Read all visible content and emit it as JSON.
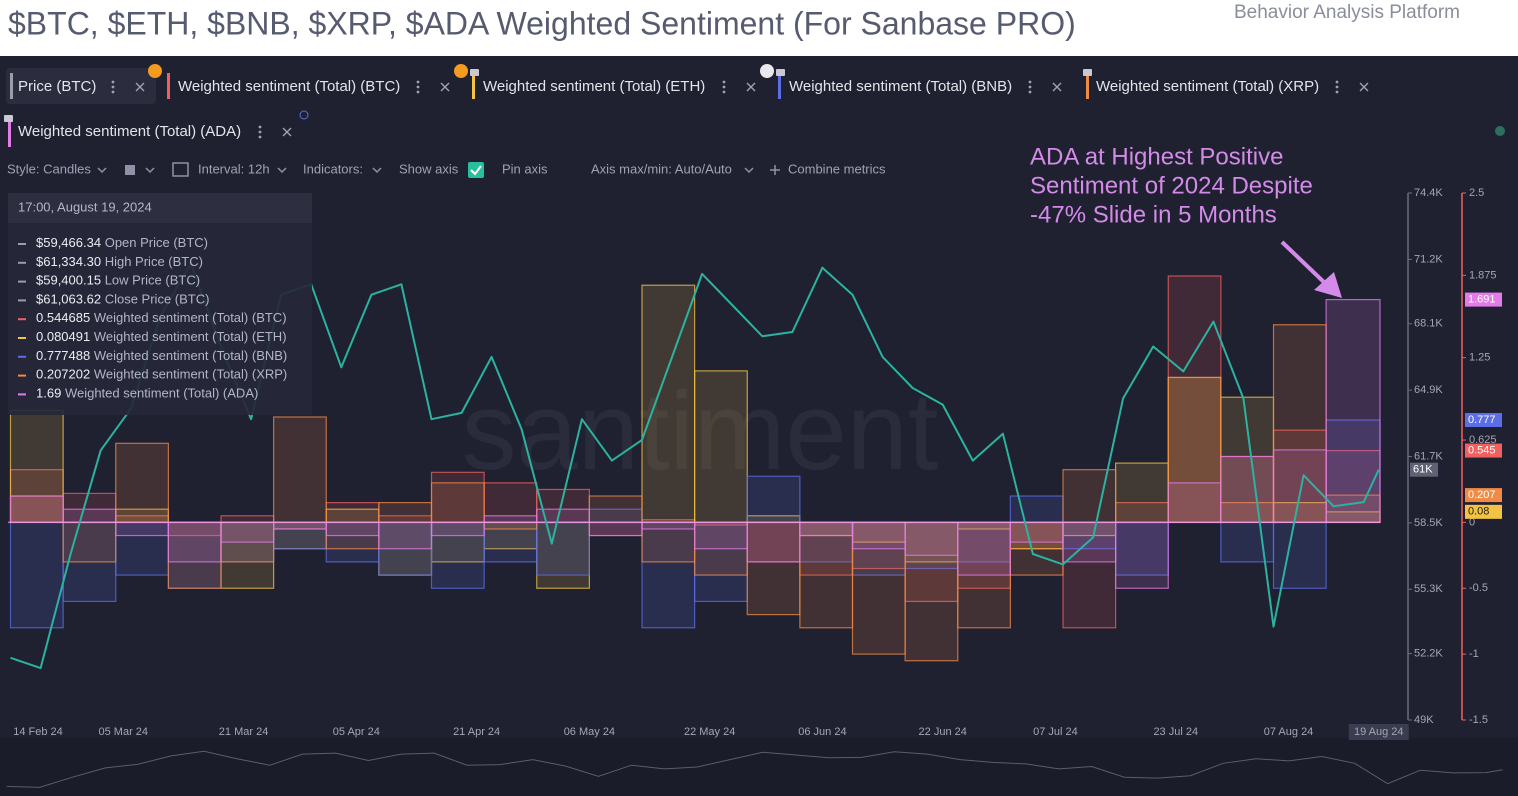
{
  "header": {
    "title": "$BTC, $ETH, $BNB, $XRP, $ADA Weighted Sentiment (For Sanbase PRO)",
    "brand": "Behavior Analysis Platform"
  },
  "toolbar": {
    "style": "Style: Candles",
    "interval": "Interval: 12h",
    "indicators": "Indicators:",
    "show_axis": "Show axis",
    "pin_axis": "Pin axis",
    "axis_range": "Axis max/min: Auto/Auto",
    "combine": "Combine metrics"
  },
  "tooltip": {
    "time": "17:00, August 19, 2024",
    "rows": [
      {
        "value": "$59,466.34",
        "label": "Open Price (BTC)",
        "color": "#9a9cab"
      },
      {
        "value": "$61,334.30",
        "label": "High Price (BTC)",
        "color": "#9a9cab"
      },
      {
        "value": "$59,400.15",
        "label": "Low Price (BTC)",
        "color": "#9a9cab"
      },
      {
        "value": "$61,063.62",
        "label": "Close Price (BTC)",
        "color": "#9a9cab"
      },
      {
        "value": "0.544685",
        "label": "Weighted sentiment (Total) (BTC)",
        "color": "#f0605e"
      },
      {
        "value": "0.080491",
        "label": "Weighted sentiment (Total) (ETH)",
        "color": "#f5c343"
      },
      {
        "value": "0.777488",
        "label": "Weighted sentiment (Total) (BNB)",
        "color": "#5b6ee8"
      },
      {
        "value": "0.207202",
        "label": "Weighted sentiment (Total) (XRP)",
        "color": "#f08a45"
      },
      {
        "value": "1.69",
        "label": "Weighted sentiment (Total) (ADA)",
        "color": "#e27ce8"
      }
    ]
  },
  "chart_data": {
    "type": "line",
    "watermark": "santiment",
    "annotation": [
      "ADA at Highest Positive",
      "Sentiment of 2024 Despite",
      "-47% Slide in 5 Months"
    ],
    "xlim": [
      "2024-02-18T16:00",
      "2024-08-19T04:00"
    ],
    "xticks": [
      {
        "value": "2024-02-14",
        "label": "14 Feb 24"
      },
      {
        "value": "2024-03-05",
        "label": "05 Mar 24"
      },
      {
        "value": "2024-03-21",
        "label": "21 Mar 24"
      },
      {
        "value": "2024-04-05",
        "label": "05 Apr 24"
      },
      {
        "value": "2024-04-21",
        "label": "21 Apr 24"
      },
      {
        "value": "2024-05-06",
        "label": "06 May 24"
      },
      {
        "value": "2024-05-22",
        "label": "22 May 24"
      },
      {
        "value": "2024-06-06",
        "label": "06 Jun 24"
      },
      {
        "value": "2024-06-22",
        "label": "22 Jun 24"
      },
      {
        "value": "2024-07-07",
        "label": "07 Jul 24"
      },
      {
        "value": "2024-07-23",
        "label": "23 Jul 24"
      },
      {
        "value": "2024-08-07",
        "label": "07 Aug 24"
      },
      {
        "value": "2024-08-19",
        "label": "19 Aug 24"
      }
    ],
    "ylim": [
      49000,
      74400
    ],
    "yticks": [
      {
        "value": 74400,
        "label": "74.4K"
      },
      {
        "value": 71200,
        "label": "71.2K"
      },
      {
        "value": 68100,
        "label": "68.1K"
      },
      {
        "value": 64900,
        "label": "64.9K"
      },
      {
        "value": 61700,
        "label": "61.7K"
      },
      {
        "value": 58500,
        "label": "58.5K"
      },
      {
        "value": 55300,
        "label": "55.3K"
      },
      {
        "value": 52200,
        "label": "52.2K"
      },
      {
        "value": 49000,
        "label": "49K"
      }
    ],
    "y2lim": [
      -1.5,
      2.5
    ],
    "y2ticks": [
      2.5,
      1.875,
      1.25,
      0.625,
      0,
      -0.5,
      -1,
      -1.5
    ],
    "price": {
      "name": "Price (BTC)",
      "color": "#2bb39f",
      "last_label": "61K",
      "x": [
        "2024-02-19",
        "2024-02-23",
        "2024-02-27",
        "2024-03-02",
        "2024-03-06",
        "2024-03-10",
        "2024-03-14",
        "2024-03-18",
        "2024-03-22",
        "2024-03-26",
        "2024-03-30",
        "2024-04-03",
        "2024-04-07",
        "2024-04-11",
        "2024-04-15",
        "2024-04-19",
        "2024-04-23",
        "2024-04-27",
        "2024-05-01",
        "2024-05-05",
        "2024-05-09",
        "2024-05-13",
        "2024-05-17",
        "2024-05-21",
        "2024-05-25",
        "2024-05-29",
        "2024-06-02",
        "2024-06-06",
        "2024-06-10",
        "2024-06-14",
        "2024-06-18",
        "2024-06-22",
        "2024-06-26",
        "2024-06-30",
        "2024-07-04",
        "2024-07-08",
        "2024-07-12",
        "2024-07-16",
        "2024-07-20",
        "2024-07-24",
        "2024-07-28",
        "2024-08-01",
        "2024-08-05",
        "2024-08-09",
        "2024-08-13",
        "2024-08-17",
        "2024-08-19"
      ],
      "values": [
        52000,
        51500,
        57000,
        62000,
        64000,
        68500,
        71000,
        67000,
        63500,
        69500,
        70000,
        66000,
        69500,
        70000,
        63500,
        63800,
        66500,
        63000,
        57500,
        63500,
        61500,
        62500,
        66500,
        70500,
        69000,
        67500,
        67700,
        70800,
        69500,
        66500,
        65000,
        64200,
        61500,
        62800,
        57000,
        56500,
        57800,
        64500,
        67000,
        65800,
        68200,
        64500,
        53500,
        60800,
        59300,
        59500,
        61063.62
      ]
    },
    "x": [
      "2024-02-19",
      "2024-02-26",
      "2024-03-04",
      "2024-03-11",
      "2024-03-18",
      "2024-03-25",
      "2024-04-01",
      "2024-04-08",
      "2024-04-15",
      "2024-04-22",
      "2024-04-29",
      "2024-05-06",
      "2024-05-13",
      "2024-05-20",
      "2024-05-27",
      "2024-06-03",
      "2024-06-10",
      "2024-06-17",
      "2024-06-24",
      "2024-07-01",
      "2024-07-08",
      "2024-07-15",
      "2024-07-22",
      "2024-07-29",
      "2024-08-05",
      "2024-08-12"
    ],
    "series": [
      {
        "name": "Weighted sentiment (Total) (BTC)",
        "color": "#f0605e",
        "axis": "y2",
        "values": [
          0.4,
          0.22,
          0.05,
          -0.1,
          0.05,
          -0.05,
          0.15,
          0.05,
          0.38,
          0.3,
          0.25,
          -0.1,
          0.02,
          -0.02,
          -0.3,
          -0.4,
          -0.35,
          -0.6,
          -0.5,
          -0.2,
          -0.8,
          0.15,
          1.87,
          0.5,
          0.7,
          0.545
        ]
      },
      {
        "name": "Weighted sentiment (Total) (ETH)",
        "color": "#f5c343",
        "axis": "y2",
        "values": [
          0.85,
          0,
          0.1,
          0,
          -0.5,
          -0.2,
          0.1,
          -0.4,
          -0.3,
          -0.2,
          -0.5,
          0,
          1.8,
          1.15,
          0.05,
          -0.1,
          -0.15,
          -0.3,
          -0.05,
          -0.2,
          -0.1,
          0.45,
          1.1,
          0.95,
          0.15,
          0.08
        ]
      },
      {
        "name": "Weighted sentiment (Total) (BNB)",
        "color": "#5b6ee8",
        "axis": "y2",
        "values": [
          -0.8,
          -0.6,
          -0.4,
          -0.5,
          -0.3,
          -0.2,
          -0.3,
          -0.4,
          -0.5,
          -0.3,
          -0.4,
          0.1,
          -0.8,
          -0.6,
          0.35,
          -0.3,
          -0.4,
          -0.35,
          -0.3,
          0.2,
          -0.2,
          -0.4,
          0,
          -0.3,
          -0.5,
          0.777
        ]
      },
      {
        "name": "Weighted sentiment (Total) (XRP)",
        "color": "#f08a45",
        "axis": "y2",
        "values": [
          0.2,
          -0.3,
          0.6,
          -0.5,
          -0.3,
          0.8,
          -0.2,
          0.15,
          0.3,
          -0.05,
          0,
          0.2,
          -0.3,
          -0.4,
          -0.7,
          -0.8,
          -1,
          -1.05,
          -0.8,
          -0.4,
          0.4,
          0,
          1.1,
          0.15,
          1.5,
          0.207
        ]
      },
      {
        "name": "Weighted sentiment (Total) (ADA)",
        "color": "#e27ce8",
        "axis": "y2",
        "values": [
          0.2,
          0.1,
          -0.1,
          -0.3,
          -0.15,
          -0.05,
          -0.1,
          -0.2,
          -0.1,
          0.05,
          0.1,
          -0.1,
          -0.05,
          -0.2,
          -0.3,
          -0.1,
          -0.2,
          -0.25,
          -0.4,
          -0.15,
          -0.3,
          -0.5,
          0.3,
          0.5,
          0.55,
          1.691
        ]
      }
    ]
  }
}
